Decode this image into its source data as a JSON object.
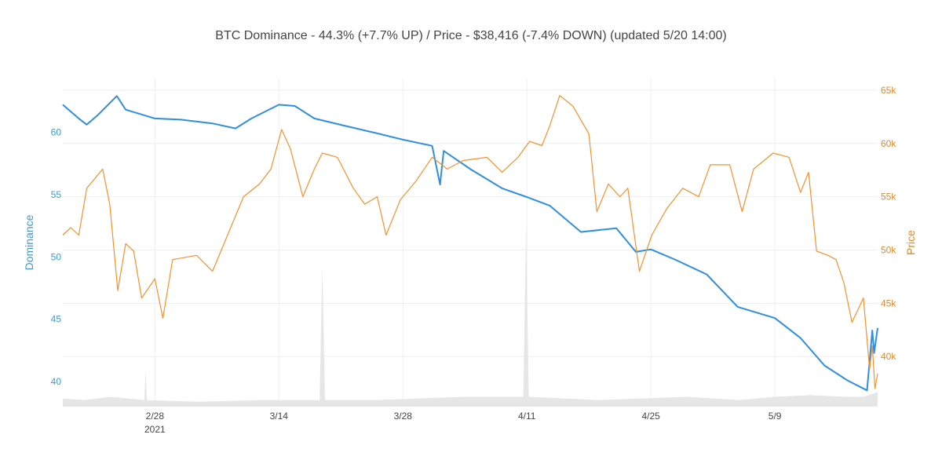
{
  "chart_data": {
    "type": "line",
    "title": "BTC Dominance - 44.3%  (+7.7% UP)  /  Price - $38,416  (-7.4% DOWN)    (updated 5/20 14:00)",
    "x_unit": "days since 2021-02-28",
    "xlim": [
      -10.4,
      81.6
    ],
    "x_ticks": [
      {
        "value": 0,
        "label": "2/28",
        "sublabel": "2021"
      },
      {
        "value": 14,
        "label": "3/14"
      },
      {
        "value": 28,
        "label": "3/28"
      },
      {
        "value": 42,
        "label": "4/11"
      },
      {
        "value": 56,
        "label": "4/25"
      },
      {
        "value": 70,
        "label": "5/9"
      }
    ],
    "y_left": {
      "label": "Dominance",
      "range": [
        38.0,
        64.3
      ],
      "ticks": [
        {
          "value": 40,
          "label": "40"
        },
        {
          "value": 45,
          "label": "45"
        },
        {
          "value": 50,
          "label": "50"
        },
        {
          "value": 55,
          "label": "55"
        },
        {
          "value": 60,
          "label": "60"
        }
      ],
      "color": "#3a9bd5"
    },
    "y_right": {
      "label": "Price",
      "range": [
        35.3,
        66.1
      ],
      "unit": "k USD",
      "ticks": [
        {
          "value": 40,
          "label": "40k"
        },
        {
          "value": 45,
          "label": "45k"
        },
        {
          "value": 50,
          "label": "50k"
        },
        {
          "value": 55,
          "label": "55k"
        },
        {
          "value": 60,
          "label": "60k"
        },
        {
          "value": 65,
          "label": "65k"
        }
      ],
      "color": "#d98a2f"
    },
    "grid": true,
    "series": [
      {
        "name": "Dominance",
        "axis": "left",
        "color": "#2f8fde",
        "x": [
          -10.4,
          -8.6,
          -7.7,
          -6.4,
          -4.3,
          -3.3,
          0,
          2.9,
          6.5,
          9.1,
          10.9,
          14,
          15.8,
          18,
          21.5,
          25.1,
          28,
          31.3,
          32.2,
          32.6,
          35.7,
          39.2,
          42,
          44.6,
          48.1,
          52.1,
          54.3,
          56,
          58.7,
          62.3,
          65.8,
          70,
          72.9,
          75.6,
          78.2,
          80.4,
          81,
          81.2,
          81.6
        ],
        "y": [
          62.2,
          61.1,
          60.6,
          61.4,
          62.9,
          61.8,
          61.1,
          61.0,
          60.7,
          60.3,
          61.1,
          62.2,
          62.1,
          61.1,
          60.5,
          59.9,
          59.4,
          58.9,
          55.8,
          58.5,
          57.0,
          55.5,
          54.8,
          54.1,
          52.0,
          52.3,
          50.4,
          50.6,
          49.8,
          48.6,
          46.0,
          45.1,
          43.5,
          41.3,
          40.1,
          39.3,
          44.1,
          42.3,
          44.3
        ]
      },
      {
        "name": "Price",
        "axis": "right",
        "color": "#f0922e",
        "x": [
          -10.4,
          -9.5,
          -8.6,
          -7.7,
          -5.9,
          -5.1,
          -4.2,
          -3.3,
          -2.4,
          -1.5,
          0,
          0.9,
          2.0,
          4.7,
          6.5,
          8.2,
          10.0,
          11.8,
          13.1,
          14.3,
          15.3,
          16.7,
          18.0,
          18.9,
          20.6,
          22.4,
          23.7,
          25.1,
          26.1,
          27.7,
          29.5,
          31.3,
          33.0,
          34.8,
          37.5,
          39.2,
          41.0,
          42.3,
          43.7,
          44.6,
          45.7,
          47.2,
          49.0,
          49.9,
          51.2,
          52.5,
          53.4,
          54.7,
          56.1,
          57.8,
          59.6,
          61.4,
          62.7,
          64.9,
          66.3,
          67.6,
          69.8,
          71.6,
          72.9,
          73.8,
          74.7,
          76.0,
          76.9,
          77.8,
          78.7,
          80.0,
          80.7,
          81.0,
          81.3,
          81.6
        ],
        "y": [
          51.4,
          52.1,
          51.4,
          55.8,
          57.6,
          54.3,
          46.2,
          50.6,
          49.9,
          45.5,
          47.3,
          43.6,
          49.1,
          49.5,
          48.0,
          51.4,
          55.0,
          56.2,
          57.6,
          61.3,
          59.5,
          55.0,
          57.6,
          59.1,
          58.7,
          55.8,
          54.3,
          55.0,
          51.4,
          54.7,
          56.5,
          58.7,
          57.6,
          58.4,
          58.7,
          57.3,
          58.7,
          60.2,
          59.8,
          61.7,
          64.5,
          63.5,
          60.9,
          53.6,
          56.2,
          55.0,
          55.8,
          48.0,
          51.4,
          53.9,
          55.8,
          55.0,
          58.0,
          58.0,
          53.6,
          57.6,
          59.1,
          58.7,
          55.4,
          57.3,
          49.9,
          49.5,
          49.1,
          46.9,
          43.2,
          45.5,
          38.8,
          41.0,
          37.0,
          38.4
        ]
      },
      {
        "name": "Volume",
        "axis": "none",
        "type": "area",
        "relative": true,
        "color": "#e6e6e6",
        "x": [
          -10.4,
          -8,
          -5,
          -1.2,
          -1.05,
          -0.9,
          5,
          12,
          18.6,
          18.9,
          19.2,
          25,
          35,
          41.6,
          41.9,
          42.2,
          50,
          60,
          66,
          70,
          74,
          78,
          80,
          81.6
        ],
        "y": [
          0.025,
          0.02,
          0.03,
          0.02,
          0.11,
          0.02,
          0.015,
          0.02,
          0.02,
          0.43,
          0.02,
          0.02,
          0.03,
          0.03,
          0.55,
          0.03,
          0.02,
          0.03,
          0.02,
          0.03,
          0.035,
          0.03,
          0.03,
          0.045
        ]
      }
    ]
  }
}
